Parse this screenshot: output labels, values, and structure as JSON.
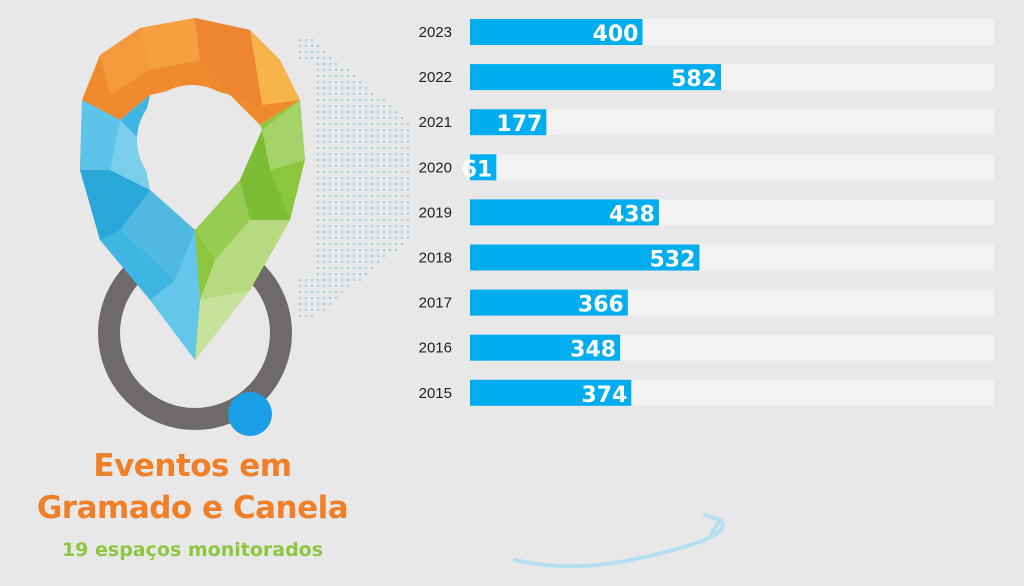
{
  "header": {
    "title_line1": "Eventos em",
    "title_line2": "Gramado e Canela",
    "subtitle": "19 espaços monitorados"
  },
  "colors": {
    "bar": "#00aeef",
    "track": "#f2f2f2",
    "title": "#f07f2a",
    "subtitle": "#8dc63f",
    "label": "#ffffff"
  },
  "chart_data": {
    "type": "bar",
    "orientation": "horizontal",
    "categories": [
      "2023",
      "2022",
      "2021",
      "2020",
      "2019",
      "2018",
      "2017",
      "2016",
      "2015"
    ],
    "values": [
      400,
      582,
      177,
      61,
      438,
      532,
      366,
      348,
      374
    ],
    "data_labels": [
      "400",
      "582",
      "177",
      "61",
      "438",
      "532",
      "366",
      "348",
      "374"
    ],
    "xlim": [
      0,
      1215
    ],
    "grid": false,
    "legend": "none"
  }
}
